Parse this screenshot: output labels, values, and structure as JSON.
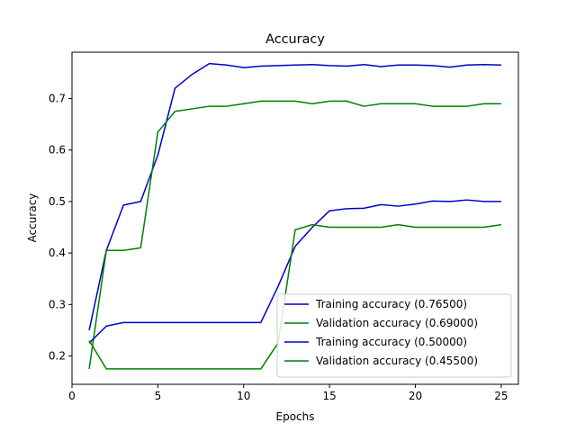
{
  "chart_data": {
    "type": "line",
    "title": "Accuracy",
    "xlabel": "Epochs",
    "ylabel": "Accuracy",
    "xlim": [
      0,
      26
    ],
    "ylim": [
      0.145,
      0.79
    ],
    "xticks": [
      0,
      5,
      10,
      15,
      20,
      25
    ],
    "yticks": [
      0.2,
      0.3,
      0.4,
      0.5,
      0.6,
      0.7
    ],
    "grid": false,
    "legend_position": "lower-right",
    "x": [
      1,
      2,
      3,
      4,
      5,
      6,
      7,
      8,
      9,
      10,
      11,
      12,
      13,
      14,
      15,
      16,
      17,
      18,
      19,
      20,
      21,
      22,
      23,
      24,
      25
    ],
    "series": [
      {
        "name": "Training accuracy (0.76500)",
        "color": "#0000cc",
        "values": [
          0.25,
          0.405,
          0.493,
          0.5,
          0.59,
          0.72,
          0.747,
          0.768,
          0.765,
          0.76,
          0.763,
          0.764,
          0.765,
          0.766,
          0.764,
          0.763,
          0.766,
          0.762,
          0.765,
          0.765,
          0.764,
          0.761,
          0.765,
          0.766,
          0.765
        ]
      },
      {
        "name": "Validation accuracy (0.69000)",
        "color": "#008000",
        "values": [
          0.175,
          0.405,
          0.405,
          0.41,
          0.635,
          0.675,
          0.68,
          0.685,
          0.685,
          0.69,
          0.695,
          0.695,
          0.695,
          0.69,
          0.695,
          0.695,
          0.685,
          0.69,
          0.69,
          0.69,
          0.685,
          0.685,
          0.685,
          0.69,
          0.69
        ]
      },
      {
        "name": "Training accuracy (0.50000)",
        "color": "#0000cc",
        "values": [
          0.225,
          0.258,
          0.265,
          0.265,
          0.265,
          0.265,
          0.265,
          0.265,
          0.265,
          0.265,
          0.265,
          0.335,
          0.413,
          0.45,
          0.482,
          0.486,
          0.487,
          0.494,
          0.491,
          0.495,
          0.501,
          0.5,
          0.503,
          0.5,
          0.5
        ]
      },
      {
        "name": "Validation accuracy (0.45500)",
        "color": "#008000",
        "values": [
          0.23,
          0.175,
          0.175,
          0.175,
          0.175,
          0.175,
          0.175,
          0.175,
          0.175,
          0.175,
          0.175,
          0.225,
          0.445,
          0.455,
          0.45,
          0.45,
          0.45,
          0.45,
          0.455,
          0.45,
          0.45,
          0.45,
          0.45,
          0.45,
          0.455
        ]
      }
    ]
  }
}
